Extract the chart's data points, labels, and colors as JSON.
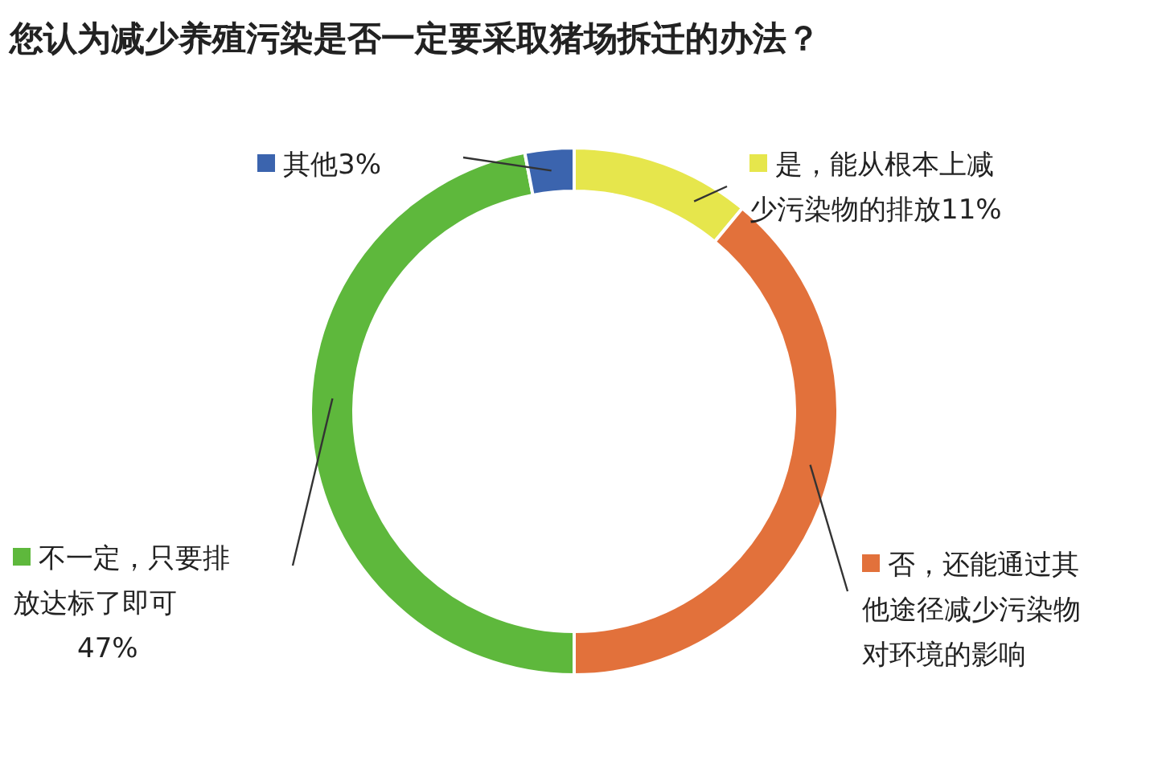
{
  "chart_data": {
    "type": "donut",
    "title": "您认为减少养殖污染是否一定要采取猪场拆迁的办法？",
    "categories": [
      "是，能从根本上减少污染物的排放",
      "否，还能通过其他途径减少污染物对环境的影响",
      "不一定，只要排放达标了即可",
      "其他"
    ],
    "values": [
      11,
      39,
      47,
      3
    ],
    "value_labels": [
      "11%",
      null,
      "47%",
      "3%"
    ],
    "colors": [
      "#e6e64c",
      "#e2713b",
      "#5eb83c",
      "#3b64ae"
    ],
    "legend": "top left"
  }
}
